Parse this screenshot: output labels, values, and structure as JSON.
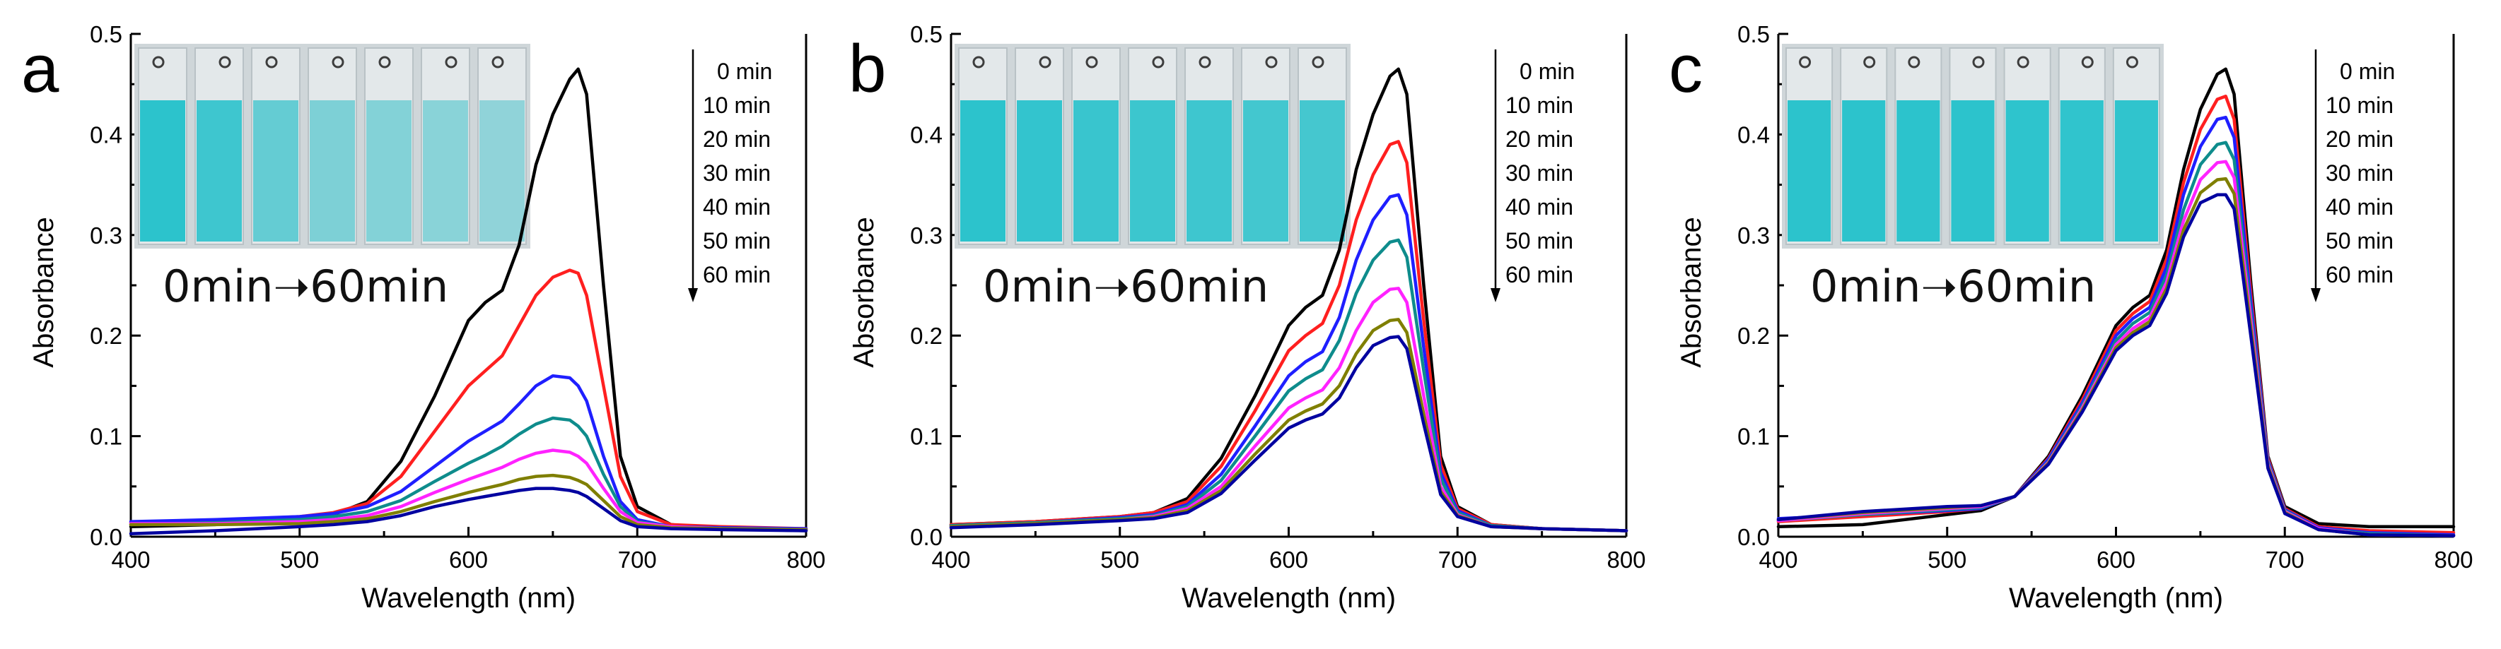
{
  "figure": {
    "inset_caption": "0min➝60min",
    "inset_colors": {
      "background": "#cfd6d9",
      "liquid": "#2cc3cc",
      "liquid_light": "#a9d8dc",
      "cap": "#3d3d3d"
    }
  },
  "chart_data": [
    {
      "panel": "a",
      "type": "line",
      "xlabel": "Wavelength (nm)",
      "ylabel": "Absorbance",
      "xlim": [
        400,
        800
      ],
      "ylim": [
        0,
        0.5
      ],
      "xticks": [
        "400",
        "500",
        "600",
        "700",
        "800"
      ],
      "yticks": [
        "0.0",
        "0.1",
        "0.2",
        "0.3",
        "0.4",
        "0.5"
      ],
      "inset_caption": "0min➝60min",
      "inset_fill_levels": [
        1.0,
        0.85,
        0.55,
        0.35,
        0.3,
        0.25,
        0.2
      ],
      "x": [
        400,
        450,
        500,
        520,
        540,
        560,
        580,
        600,
        610,
        620,
        630,
        640,
        650,
        660,
        665,
        670,
        680,
        690,
        700,
        720,
        750,
        800
      ],
      "series": [
        {
          "name": "0 min",
          "color": "#000000",
          "values": [
            0.01,
            0.012,
            0.018,
            0.022,
            0.035,
            0.075,
            0.14,
            0.215,
            0.233,
            0.245,
            0.29,
            0.37,
            0.42,
            0.455,
            0.465,
            0.44,
            0.25,
            0.08,
            0.03,
            0.012,
            0.008,
            0.006
          ]
        },
        {
          "name": "10 min",
          "color": "#ff1f1f",
          "values": [
            0.014,
            0.016,
            0.02,
            0.024,
            0.033,
            0.06,
            0.105,
            0.15,
            0.165,
            0.18,
            0.21,
            0.24,
            0.258,
            0.265,
            0.262,
            0.24,
            0.15,
            0.06,
            0.025,
            0.012,
            0.01,
            0.008
          ]
        },
        {
          "name": "20 min",
          "color": "#1f1fff",
          "values": [
            0.015,
            0.017,
            0.02,
            0.023,
            0.03,
            0.045,
            0.07,
            0.095,
            0.105,
            0.115,
            0.132,
            0.15,
            0.16,
            0.158,
            0.15,
            0.135,
            0.08,
            0.035,
            0.017,
            0.01,
            0.009,
            0.008
          ]
        },
        {
          "name": "30 min",
          "color": "#0e8c8c",
          "values": [
            0.012,
            0.014,
            0.017,
            0.02,
            0.025,
            0.036,
            0.055,
            0.073,
            0.081,
            0.09,
            0.102,
            0.112,
            0.118,
            0.116,
            0.11,
            0.1,
            0.062,
            0.03,
            0.015,
            0.01,
            0.008,
            0.007
          ]
        },
        {
          "name": "40 min",
          "color": "#ff22ff",
          "values": [
            0.013,
            0.013,
            0.015,
            0.017,
            0.021,
            0.03,
            0.044,
            0.057,
            0.063,
            0.069,
            0.077,
            0.083,
            0.086,
            0.084,
            0.08,
            0.073,
            0.048,
            0.025,
            0.014,
            0.01,
            0.008,
            0.007
          ]
        },
        {
          "name": "50 min",
          "color": "#7f7f00",
          "values": [
            0.012,
            0.012,
            0.013,
            0.015,
            0.018,
            0.025,
            0.035,
            0.044,
            0.048,
            0.052,
            0.057,
            0.06,
            0.061,
            0.059,
            0.056,
            0.052,
            0.036,
            0.02,
            0.012,
            0.009,
            0.008,
            0.007
          ]
        },
        {
          "name": "60 min",
          "color": "#0000a0",
          "values": [
            0.003,
            0.006,
            0.01,
            0.012,
            0.015,
            0.021,
            0.03,
            0.037,
            0.04,
            0.043,
            0.046,
            0.048,
            0.048,
            0.046,
            0.044,
            0.04,
            0.028,
            0.016,
            0.01,
            0.008,
            0.007,
            0.006
          ]
        }
      ]
    },
    {
      "panel": "b",
      "type": "line",
      "xlabel": "Wavelength (nm)",
      "ylabel": "Absorbance",
      "xlim": [
        400,
        800
      ],
      "ylim": [
        0,
        0.5
      ],
      "xticks": [
        "400",
        "500",
        "600",
        "700",
        "800"
      ],
      "yticks": [
        "0.0",
        "0.1",
        "0.2",
        "0.3",
        "0.4",
        "0.5"
      ],
      "inset_caption": "0min➝60min",
      "inset_fill_levels": [
        1.0,
        0.95,
        0.9,
        0.88,
        0.85,
        0.82,
        0.8
      ],
      "x": [
        400,
        450,
        500,
        520,
        540,
        560,
        580,
        600,
        610,
        620,
        630,
        640,
        650,
        660,
        665,
        670,
        680,
        690,
        700,
        720,
        750,
        800
      ],
      "series": [
        {
          "name": "0 min",
          "color": "#000000",
          "values": [
            0.012,
            0.015,
            0.02,
            0.024,
            0.038,
            0.078,
            0.14,
            0.21,
            0.228,
            0.24,
            0.285,
            0.365,
            0.42,
            0.458,
            0.465,
            0.44,
            0.25,
            0.08,
            0.03,
            0.012,
            0.008,
            0.006
          ]
        },
        {
          "name": "10 min",
          "color": "#ff1f1f",
          "values": [
            0.012,
            0.015,
            0.02,
            0.024,
            0.035,
            0.07,
            0.125,
            0.185,
            0.2,
            0.212,
            0.25,
            0.315,
            0.36,
            0.39,
            0.393,
            0.372,
            0.215,
            0.072,
            0.028,
            0.012,
            0.008,
            0.006
          ]
        },
        {
          "name": "20 min",
          "color": "#1f1fff",
          "values": [
            0.011,
            0.014,
            0.019,
            0.022,
            0.032,
            0.062,
            0.11,
            0.16,
            0.174,
            0.184,
            0.218,
            0.275,
            0.315,
            0.338,
            0.34,
            0.32,
            0.188,
            0.064,
            0.026,
            0.011,
            0.008,
            0.006
          ]
        },
        {
          "name": "30 min",
          "color": "#0e8c8c",
          "values": [
            0.011,
            0.014,
            0.018,
            0.021,
            0.03,
            0.056,
            0.1,
            0.145,
            0.157,
            0.166,
            0.195,
            0.242,
            0.275,
            0.293,
            0.295,
            0.278,
            0.165,
            0.058,
            0.024,
            0.011,
            0.008,
            0.006
          ]
        },
        {
          "name": "40 min",
          "color": "#ff22ff",
          "values": [
            0.01,
            0.013,
            0.017,
            0.02,
            0.028,
            0.05,
            0.09,
            0.128,
            0.138,
            0.146,
            0.168,
            0.205,
            0.233,
            0.246,
            0.247,
            0.233,
            0.14,
            0.05,
            0.022,
            0.01,
            0.008,
            0.006
          ]
        },
        {
          "name": "50 min",
          "color": "#7f7f00",
          "values": [
            0.01,
            0.013,
            0.017,
            0.019,
            0.026,
            0.046,
            0.082,
            0.116,
            0.125,
            0.132,
            0.15,
            0.182,
            0.205,
            0.215,
            0.216,
            0.203,
            0.122,
            0.045,
            0.021,
            0.01,
            0.008,
            0.006
          ]
        },
        {
          "name": "60 min",
          "color": "#0000a0",
          "values": [
            0.009,
            0.012,
            0.016,
            0.018,
            0.024,
            0.043,
            0.076,
            0.108,
            0.116,
            0.122,
            0.138,
            0.168,
            0.19,
            0.198,
            0.199,
            0.187,
            0.112,
            0.042,
            0.02,
            0.01,
            0.008,
            0.006
          ]
        }
      ]
    },
    {
      "panel": "c",
      "type": "line",
      "xlabel": "Wavelength (nm)",
      "ylabel": "Absorbance",
      "xlim": [
        400,
        800
      ],
      "ylim": [
        0,
        0.5
      ],
      "xticks": [
        "400",
        "500",
        "600",
        "700",
        "800"
      ],
      "yticks": [
        "0.0",
        "0.1",
        "0.2",
        "0.3",
        "0.4",
        "0.5"
      ],
      "inset_caption": "0min➝60min",
      "inset_fill_levels": [
        1.0,
        1.0,
        1.0,
        1.0,
        0.98,
        0.97,
        0.97
      ],
      "x": [
        400,
        450,
        500,
        520,
        540,
        560,
        580,
        600,
        610,
        620,
        630,
        640,
        650,
        660,
        665,
        670,
        680,
        690,
        700,
        720,
        750,
        800
      ],
      "series": [
        {
          "name": "0 min",
          "color": "#000000",
          "values": [
            0.01,
            0.012,
            0.022,
            0.026,
            0.04,
            0.08,
            0.14,
            0.21,
            0.228,
            0.24,
            0.285,
            0.365,
            0.425,
            0.46,
            0.465,
            0.44,
            0.25,
            0.08,
            0.03,
            0.013,
            0.01,
            0.01
          ]
        },
        {
          "name": "10 min",
          "color": "#ff1f1f",
          "values": [
            0.015,
            0.02,
            0.025,
            0.028,
            0.04,
            0.078,
            0.136,
            0.205,
            0.222,
            0.234,
            0.276,
            0.352,
            0.405,
            0.435,
            0.438,
            0.415,
            0.24,
            0.078,
            0.028,
            0.01,
            0.006,
            0.004
          ]
        },
        {
          "name": "20 min",
          "color": "#1f1fff",
          "values": [
            0.018,
            0.022,
            0.026,
            0.028,
            0.04,
            0.077,
            0.133,
            0.2,
            0.217,
            0.228,
            0.268,
            0.34,
            0.388,
            0.415,
            0.417,
            0.397,
            0.232,
            0.076,
            0.027,
            0.009,
            0.004,
            0.002
          ]
        },
        {
          "name": "30 min",
          "color": "#0e8c8c",
          "values": [
            0.016,
            0.022,
            0.027,
            0.029,
            0.04,
            0.075,
            0.13,
            0.195,
            0.212,
            0.223,
            0.26,
            0.325,
            0.37,
            0.39,
            0.392,
            0.375,
            0.222,
            0.074,
            0.026,
            0.008,
            0.003,
            0.001
          ]
        },
        {
          "name": "40 min",
          "color": "#ff22ff",
          "values": [
            0.016,
            0.023,
            0.028,
            0.03,
            0.04,
            0.074,
            0.128,
            0.191,
            0.207,
            0.218,
            0.253,
            0.314,
            0.355,
            0.372,
            0.373,
            0.357,
            0.214,
            0.072,
            0.025,
            0.008,
            0.002,
            0.001
          ]
        },
        {
          "name": "50 min",
          "color": "#7f7f00",
          "values": [
            0.017,
            0.024,
            0.029,
            0.031,
            0.04,
            0.073,
            0.126,
            0.188,
            0.203,
            0.214,
            0.247,
            0.305,
            0.342,
            0.355,
            0.356,
            0.341,
            0.206,
            0.07,
            0.024,
            0.007,
            0.002,
            0.001
          ]
        },
        {
          "name": "60 min",
          "color": "#0000a0",
          "values": [
            0.017,
            0.025,
            0.03,
            0.031,
            0.04,
            0.072,
            0.124,
            0.185,
            0.2,
            0.21,
            0.242,
            0.298,
            0.332,
            0.34,
            0.34,
            0.326,
            0.198,
            0.068,
            0.023,
            0.007,
            0.002,
            0.001
          ]
        }
      ]
    }
  ]
}
